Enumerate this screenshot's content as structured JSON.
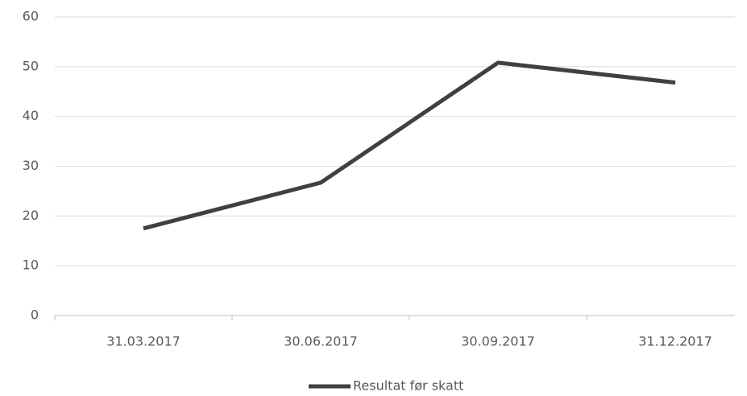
{
  "chart_data": {
    "type": "line",
    "categories": [
      "31.03.2017",
      "30.06.2017",
      "30.09.2017",
      "31.12.2017"
    ],
    "series": [
      {
        "name": "Resultat før skatt",
        "color": "#404040",
        "values": [
          17.5,
          26.7,
          50.8,
          46.8
        ]
      }
    ],
    "ylim": [
      0,
      60
    ],
    "yticks": [
      0,
      10,
      20,
      30,
      40,
      50,
      60
    ],
    "grid": true,
    "legend": "bottom"
  }
}
